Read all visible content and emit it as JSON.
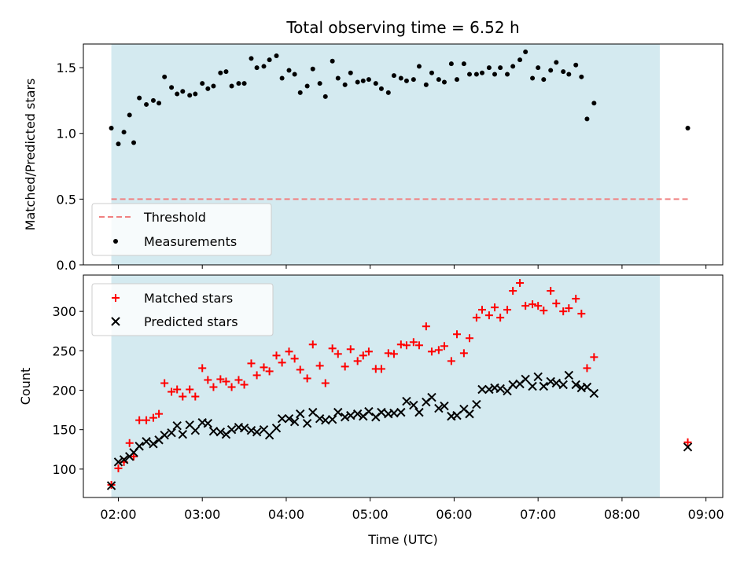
{
  "chart_data": [
    {
      "type": "scatter",
      "title": "Total observing time = 6.52 h",
      "ylabel": "Matched/Predicted stars",
      "xlabel": "",
      "ylim": [
        0,
        1.68
      ],
      "yticks": [
        "0.0",
        "0.5",
        "1.0",
        "1.5"
      ],
      "ytick_values": [
        0,
        0.5,
        1.0,
        1.5
      ],
      "shaded_interval": [
        "01:55",
        "08:27"
      ],
      "shade_color": "#d4eaf0",
      "threshold": {
        "name": "Threshold",
        "value": 0.5,
        "x_range": [
          "01:55",
          "08:47"
        ],
        "color": "#f08080",
        "style": "dashed"
      },
      "legend_position": "lower-left",
      "series": [
        {
          "name": "Measurements",
          "color": "#000000",
          "marker": "dot",
          "points": [
            [
              "01:55",
              1.04
            ],
            [
              "02:00",
              0.92
            ],
            [
              "02:04",
              1.01
            ],
            [
              "02:08",
              1.14
            ],
            [
              "02:11",
              0.93
            ],
            [
              "02:15",
              1.27
            ],
            [
              "02:20",
              1.22
            ],
            [
              "02:25",
              1.25
            ],
            [
              "02:29",
              1.23
            ],
            [
              "02:33",
              1.43
            ],
            [
              "02:38",
              1.35
            ],
            [
              "02:42",
              1.3
            ],
            [
              "02:46",
              1.32
            ],
            [
              "02:51",
              1.29
            ],
            [
              "02:55",
              1.3
            ],
            [
              "03:00",
              1.38
            ],
            [
              "03:04",
              1.34
            ],
            [
              "03:08",
              1.36
            ],
            [
              "03:13",
              1.46
            ],
            [
              "03:17",
              1.47
            ],
            [
              "03:21",
              1.36
            ],
            [
              "03:26",
              1.38
            ],
            [
              "03:30",
              1.38
            ],
            [
              "03:35",
              1.57
            ],
            [
              "03:39",
              1.5
            ],
            [
              "03:44",
              1.51
            ],
            [
              "03:48",
              1.56
            ],
            [
              "03:53",
              1.59
            ],
            [
              "03:57",
              1.42
            ],
            [
              "04:02",
              1.48
            ],
            [
              "04:06",
              1.45
            ],
            [
              "04:10",
              1.31
            ],
            [
              "04:15",
              1.36
            ],
            [
              "04:19",
              1.49
            ],
            [
              "04:24",
              1.38
            ],
            [
              "04:28",
              1.28
            ],
            [
              "04:33",
              1.55
            ],
            [
              "04:37",
              1.42
            ],
            [
              "04:42",
              1.37
            ],
            [
              "04:46",
              1.46
            ],
            [
              "04:51",
              1.39
            ],
            [
              "04:55",
              1.4
            ],
            [
              "04:59",
              1.41
            ],
            [
              "05:04",
              1.38
            ],
            [
              "05:08",
              1.34
            ],
            [
              "05:13",
              1.31
            ],
            [
              "05:17",
              1.44
            ],
            [
              "05:22",
              1.42
            ],
            [
              "05:26",
              1.4
            ],
            [
              "05:31",
              1.41
            ],
            [
              "05:35",
              1.51
            ],
            [
              "05:40",
              1.37
            ],
            [
              "05:44",
              1.46
            ],
            [
              "05:49",
              1.41
            ],
            [
              "05:53",
              1.39
            ],
            [
              "05:58",
              1.53
            ],
            [
              "06:02",
              1.41
            ],
            [
              "06:07",
              1.53
            ],
            [
              "06:11",
              1.45
            ],
            [
              "06:16",
              1.45
            ],
            [
              "06:20",
              1.46
            ],
            [
              "06:25",
              1.5
            ],
            [
              "06:29",
              1.45
            ],
            [
              "06:33",
              1.5
            ],
            [
              "06:38",
              1.45
            ],
            [
              "06:42",
              1.51
            ],
            [
              "06:47",
              1.56
            ],
            [
              "06:51",
              1.62
            ],
            [
              "06:56",
              1.42
            ],
            [
              "07:00",
              1.5
            ],
            [
              "07:04",
              1.41
            ],
            [
              "07:09",
              1.48
            ],
            [
              "07:13",
              1.54
            ],
            [
              "07:18",
              1.47
            ],
            [
              "07:22",
              1.45
            ],
            [
              "07:27",
              1.52
            ],
            [
              "07:31",
              1.43
            ],
            [
              "07:35",
              1.11
            ],
            [
              "07:40",
              1.23
            ],
            [
              "08:47",
              1.04
            ]
          ]
        }
      ]
    },
    {
      "type": "scatter",
      "title": "",
      "ylabel": "Count",
      "xlabel": "Time (UTC)",
      "ylim": [
        64,
        346
      ],
      "yticks": [
        "100",
        "150",
        "200",
        "250",
        "300"
      ],
      "ytick_values": [
        100,
        150,
        200,
        250,
        300
      ],
      "xticks": [
        "02:00",
        "03:00",
        "04:00",
        "05:00",
        "06:00",
        "07:00",
        "08:00",
        "09:00"
      ],
      "xlim": [
        "01:35",
        "09:12"
      ],
      "shaded_interval": [
        "01:55",
        "08:27"
      ],
      "shade_color": "#d4eaf0",
      "legend_position": "upper-left",
      "series": [
        {
          "name": "Matched stars",
          "color": "#ff0000",
          "marker": "plus",
          "points": [
            [
              "01:55",
              80
            ],
            [
              "02:00",
              101
            ],
            [
              "02:04",
              109
            ],
            [
              "02:08",
              133
            ],
            [
              "02:11",
              116
            ],
            [
              "02:15",
              162
            ],
            [
              "02:20",
              162
            ],
            [
              "02:25",
              165
            ],
            [
              "02:29",
              170
            ],
            [
              "02:33",
              209
            ],
            [
              "02:38",
              198
            ],
            [
              "02:42",
              201
            ],
            [
              "02:46",
              192
            ],
            [
              "02:51",
              201
            ],
            [
              "02:55",
              192
            ],
            [
              "03:00",
              228
            ],
            [
              "03:04",
              213
            ],
            [
              "03:08",
              204
            ],
            [
              "03:13",
              214
            ],
            [
              "03:17",
              211
            ],
            [
              "03:21",
              204
            ],
            [
              "03:26",
              213
            ],
            [
              "03:30",
              207
            ],
            [
              "03:35",
              234
            ],
            [
              "03:39",
              219
            ],
            [
              "03:44",
              229
            ],
            [
              "03:48",
              224
            ],
            [
              "03:53",
              244
            ],
            [
              "03:57",
              235
            ],
            [
              "04:02",
              249
            ],
            [
              "04:06",
              240
            ],
            [
              "04:10",
              226
            ],
            [
              "04:15",
              215
            ],
            [
              "04:19",
              258
            ],
            [
              "04:24",
              231
            ],
            [
              "04:28",
              209
            ],
            [
              "04:33",
              253
            ],
            [
              "04:37",
              246
            ],
            [
              "04:42",
              230
            ],
            [
              "04:46",
              252
            ],
            [
              "04:51",
              237
            ],
            [
              "04:55",
              244
            ],
            [
              "04:59",
              249
            ],
            [
              "05:04",
              227
            ],
            [
              "05:08",
              227
            ],
            [
              "05:13",
              247
            ],
            [
              "05:17",
              246
            ],
            [
              "05:22",
              258
            ],
            [
              "05:26",
              257
            ],
            [
              "05:31",
              261
            ],
            [
              "05:35",
              257
            ],
            [
              "05:40",
              281
            ],
            [
              "05:44",
              249
            ],
            [
              "05:49",
              251
            ],
            [
              "05:53",
              256
            ],
            [
              "05:58",
              237
            ],
            [
              "06:02",
              271
            ],
            [
              "06:07",
              247
            ],
            [
              "06:11",
              266
            ],
            [
              "06:16",
              292
            ],
            [
              "06:20",
              302
            ],
            [
              "06:25",
              295
            ],
            [
              "06:29",
              305
            ],
            [
              "06:33",
              292
            ],
            [
              "06:38",
              302
            ],
            [
              "06:42",
              326
            ],
            [
              "06:47",
              336
            ],
            [
              "06:51",
              307
            ],
            [
              "06:56",
              309
            ],
            [
              "07:00",
              307
            ],
            [
              "07:04",
              301
            ],
            [
              "07:09",
              326
            ],
            [
              "07:13",
              310
            ],
            [
              "07:18",
              300
            ],
            [
              "07:22",
              304
            ],
            [
              "07:27",
              316
            ],
            [
              "07:31",
              297
            ],
            [
              "07:35",
              228
            ],
            [
              "07:40",
              242
            ],
            [
              "08:47",
              134
            ]
          ]
        },
        {
          "name": "Predicted stars",
          "color": "#000000",
          "marker": "x",
          "points": [
            [
              "01:55",
              79
            ],
            [
              "02:00",
              109
            ],
            [
              "02:04",
              112
            ],
            [
              "02:08",
              116
            ],
            [
              "02:11",
              121
            ],
            [
              "02:15",
              129
            ],
            [
              "02:20",
              135
            ],
            [
              "02:25",
              132
            ],
            [
              "02:29",
              137
            ],
            [
              "02:33",
              143
            ],
            [
              "02:38",
              146
            ],
            [
              "02:42",
              155
            ],
            [
              "02:46",
              144
            ],
            [
              "02:51",
              156
            ],
            [
              "02:55",
              149
            ],
            [
              "03:00",
              159
            ],
            [
              "03:04",
              158
            ],
            [
              "03:08",
              148
            ],
            [
              "03:13",
              147
            ],
            [
              "03:17",
              144
            ],
            [
              "03:21",
              150
            ],
            [
              "03:26",
              153
            ],
            [
              "03:30",
              152
            ],
            [
              "03:35",
              149
            ],
            [
              "03:39",
              147
            ],
            [
              "03:44",
              150
            ],
            [
              "03:48",
              143
            ],
            [
              "03:53",
              152
            ],
            [
              "03:57",
              164
            ],
            [
              "04:02",
              164
            ],
            [
              "04:06",
              160
            ],
            [
              "04:10",
              170
            ],
            [
              "04:15",
              158
            ],
            [
              "04:19",
              172
            ],
            [
              "04:24",
              164
            ],
            [
              "04:28",
              162
            ],
            [
              "04:33",
              163
            ],
            [
              "04:37",
              172
            ],
            [
              "04:42",
              166
            ],
            [
              "04:46",
              168
            ],
            [
              "04:51",
              170
            ],
            [
              "04:55",
              167
            ],
            [
              "04:59",
              173
            ],
            [
              "05:04",
              166
            ],
            [
              "05:08",
              172
            ],
            [
              "05:13",
              170
            ],
            [
              "05:17",
              171
            ],
            [
              "05:22",
              172
            ],
            [
              "05:26",
              186
            ],
            [
              "05:31",
              181
            ],
            [
              "05:35",
              172
            ],
            [
              "05:40",
              185
            ],
            [
              "05:44",
              191
            ],
            [
              "05:49",
              177
            ],
            [
              "05:53",
              180
            ],
            [
              "05:58",
              167
            ],
            [
              "06:02",
              168
            ],
            [
              "06:07",
              176
            ],
            [
              "06:11",
              170
            ],
            [
              "06:16",
              182
            ],
            [
              "06:20",
              201
            ],
            [
              "06:25",
              201
            ],
            [
              "06:29",
              203
            ],
            [
              "06:33",
              202
            ],
            [
              "06:38",
              199
            ],
            [
              "06:42",
              207
            ],
            [
              "06:47",
              208
            ],
            [
              "06:51",
              214
            ],
            [
              "06:56",
              205
            ],
            [
              "07:00",
              217
            ],
            [
              "07:04",
              205
            ],
            [
              "07:09",
              211
            ],
            [
              "07:13",
              209
            ],
            [
              "07:18",
              207
            ],
            [
              "07:22",
              219
            ],
            [
              "07:27",
              207
            ],
            [
              "07:31",
              203
            ],
            [
              "07:35",
              204
            ],
            [
              "07:40",
              196
            ],
            [
              "08:47",
              128
            ]
          ]
        }
      ]
    }
  ]
}
